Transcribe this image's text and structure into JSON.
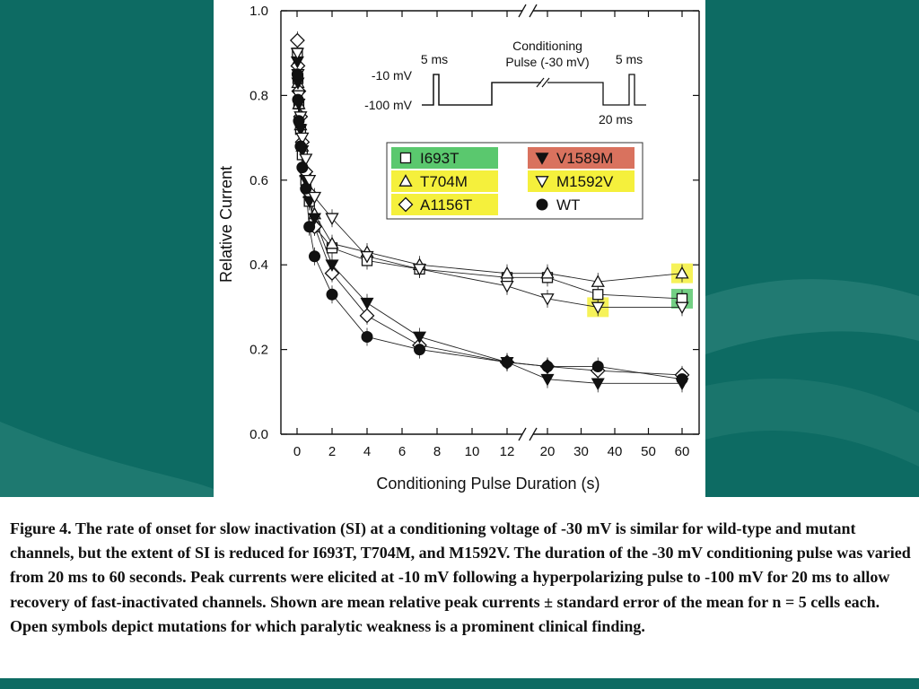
{
  "caption": "Figure 4. The rate of onset for slow inactivation (SI) at a conditioning voltage of -30 mV is similar for wild-type and mutant channels, but the extent of SI is reduced for I693T, T704M, and M1592V. The duration of the -30 mV conditioning pulse was varied from 20 ms to 60 seconds. Peak currents were elicited at -10 mV following a hyperpolarizing pulse to -100 mV for 20 ms to allow recovery of fast-inactivated channels. Shown are mean relative peak currents ± standard error of the mean for n = 5 cells each. Open symbols depict mutations for which paralytic weakness is a prominent clinical finding.",
  "colors": {
    "background": "#0d6b63",
    "highlight_green": "#5ac86e",
    "highlight_yellow": "#f5f03c",
    "highlight_red": "#d9725e"
  },
  "inset": {
    "conditioning_label": "Conditioning",
    "pulse_label": "Pulse (-30 mV)",
    "pulse_5ms_left": "5 ms",
    "pulse_5ms_right": "5 ms",
    "label_minus10": "-10 mV",
    "label_minus100": "-100 mV",
    "label_20ms": "20 ms"
  },
  "chart_data": {
    "type": "scatter",
    "xlabel": "Conditioning Pulse Duration (s)",
    "ylabel": "Relative Current",
    "x_axis_segment1": {
      "range": [
        0,
        12
      ],
      "ticks": [
        "0",
        "2",
        "4",
        "6",
        "8",
        "10",
        "12"
      ]
    },
    "x_axis_segment2": {
      "range": [
        20,
        60
      ],
      "ticks": [
        "20",
        "30",
        "40",
        "50",
        "60"
      ]
    },
    "ylim": [
      0.0,
      1.0
    ],
    "yticks": [
      "0.0",
      "0.2",
      "0.4",
      "0.6",
      "0.8",
      "1.0"
    ],
    "legend_position": "upper-right",
    "series": [
      {
        "name": "I693T",
        "marker": "square-open",
        "legend_highlight": "#5ac86e",
        "points": [
          [
            0.02,
            0.9
          ],
          [
            0.05,
            0.84
          ],
          [
            0.1,
            0.78
          ],
          [
            0.2,
            0.72
          ],
          [
            0.3,
            0.66
          ],
          [
            0.5,
            0.6
          ],
          [
            0.7,
            0.55
          ],
          [
            1,
            0.49
          ],
          [
            2,
            0.44
          ],
          [
            4,
            0.41
          ],
          [
            7,
            0.39
          ],
          [
            12,
            0.37
          ],
          [
            20,
            0.37
          ],
          [
            35,
            0.33
          ],
          [
            60,
            0.32
          ]
        ]
      },
      {
        "name": "T704M",
        "marker": "triangle-up-open",
        "legend_highlight": "#f5f03c",
        "points": [
          [
            0.02,
            0.88
          ],
          [
            0.05,
            0.83
          ],
          [
            0.1,
            0.78
          ],
          [
            0.2,
            0.73
          ],
          [
            0.3,
            0.68
          ],
          [
            0.5,
            0.62
          ],
          [
            0.7,
            0.57
          ],
          [
            1,
            0.52
          ],
          [
            2,
            0.45
          ],
          [
            4,
            0.43
          ],
          [
            7,
            0.4
          ],
          [
            12,
            0.38
          ],
          [
            20,
            0.38
          ],
          [
            35,
            0.36
          ],
          [
            60,
            0.38
          ]
        ]
      },
      {
        "name": "A1156T",
        "marker": "diamond-open",
        "legend_highlight": "#f5f03c",
        "points": [
          [
            0.02,
            0.93
          ],
          [
            0.05,
            0.87
          ],
          [
            0.1,
            0.81
          ],
          [
            0.2,
            0.75
          ],
          [
            0.3,
            0.69
          ],
          [
            0.5,
            0.62
          ],
          [
            0.7,
            0.57
          ],
          [
            1,
            0.49
          ],
          [
            2,
            0.38
          ],
          [
            4,
            0.28
          ],
          [
            7,
            0.21
          ],
          [
            12,
            0.17
          ],
          [
            20,
            0.16
          ],
          [
            35,
            0.15
          ],
          [
            60,
            0.14
          ]
        ]
      },
      {
        "name": "V1589M",
        "marker": "triangle-down-filled",
        "legend_highlight": "#d9725e",
        "points": [
          [
            0.02,
            0.88
          ],
          [
            0.05,
            0.83
          ],
          [
            0.1,
            0.78
          ],
          [
            0.2,
            0.72
          ],
          [
            0.3,
            0.67
          ],
          [
            0.5,
            0.6
          ],
          [
            0.7,
            0.55
          ],
          [
            1,
            0.51
          ],
          [
            2,
            0.4
          ],
          [
            4,
            0.31
          ],
          [
            7,
            0.23
          ],
          [
            12,
            0.17
          ],
          [
            20,
            0.13
          ],
          [
            35,
            0.12
          ],
          [
            60,
            0.12
          ]
        ]
      },
      {
        "name": "M1592V",
        "marker": "triangle-down-open",
        "legend_highlight": "#f5f03c",
        "points": [
          [
            0.02,
            0.9
          ],
          [
            0.05,
            0.85
          ],
          [
            0.1,
            0.8
          ],
          [
            0.2,
            0.75
          ],
          [
            0.3,
            0.7
          ],
          [
            0.5,
            0.65
          ],
          [
            0.7,
            0.6
          ],
          [
            1,
            0.56
          ],
          [
            2,
            0.51
          ],
          [
            4,
            0.42
          ],
          [
            7,
            0.39
          ],
          [
            12,
            0.35
          ],
          [
            20,
            0.32
          ],
          [
            35,
            0.3
          ],
          [
            60,
            0.3
          ]
        ]
      },
      {
        "name": "WT",
        "marker": "circle-filled",
        "legend_highlight": "",
        "points": [
          [
            0.02,
            0.85
          ],
          [
            0.05,
            0.79
          ],
          [
            0.1,
            0.74
          ],
          [
            0.2,
            0.68
          ],
          [
            0.3,
            0.63
          ],
          [
            0.5,
            0.58
          ],
          [
            0.7,
            0.49
          ],
          [
            1,
            0.42
          ],
          [
            2,
            0.33
          ],
          [
            4,
            0.23
          ],
          [
            7,
            0.2
          ],
          [
            12,
            0.17
          ],
          [
            20,
            0.16
          ],
          [
            35,
            0.16
          ],
          [
            60,
            0.13
          ]
        ]
      }
    ]
  }
}
